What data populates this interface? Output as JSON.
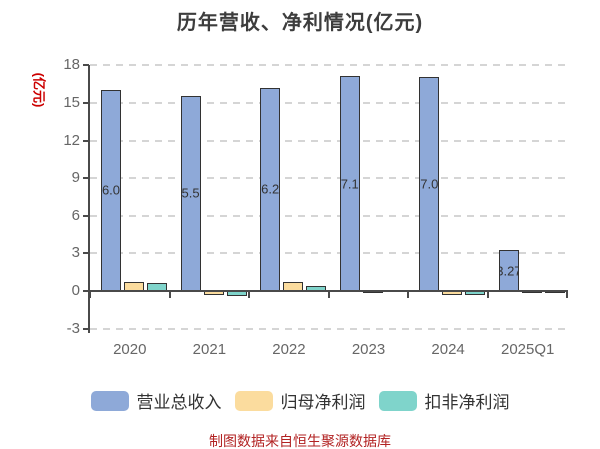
{
  "header": {
    "title": "历年营收、净利情况(亿元)"
  },
  "y_axis": {
    "unit_label": "(亿元)",
    "unit_label_color": "#cc0000"
  },
  "footer": {
    "source_note": "制图数据来自恒生聚源数据库",
    "color": "#b22222"
  },
  "legend": [
    {
      "label": "营业总收入",
      "color": "#8EA9D8"
    },
    {
      "label": "归母净利润",
      "color": "#FBDC9E"
    },
    {
      "label": "扣非净利润",
      "color": "#7FD4CB"
    }
  ],
  "colors": {
    "background": "#ffffff",
    "title_text": "#3d3d3d",
    "axis_line": "#4a4a4a",
    "gridline": "#d5d5d5",
    "tick_text": "#666666",
    "bar_border": "#323232",
    "bar_value_text": "#333333"
  },
  "chart_data": {
    "type": "bar",
    "title": "历年营收、净利情况(亿元)",
    "ylabel": "(亿元)",
    "categories": [
      "2020",
      "2021",
      "2022",
      "2023",
      "2024",
      "2025Q1"
    ],
    "series": [
      {
        "name": "营业总收入",
        "slug": "total-revenue",
        "color": "#8EA9D8",
        "values": [
          16.05,
          15.56,
          16.21,
          17.15,
          17.06,
          3.27
        ],
        "show_labels": true
      },
      {
        "name": "归母净利润",
        "slug": "net-profit-attributable",
        "color": "#FBDC9E",
        "values": [
          0.75,
          -0.33,
          0.68,
          0.03,
          -0.28,
          0.02
        ],
        "show_labels": false
      },
      {
        "name": "扣非净利润",
        "slug": "non-gaap-net-profit",
        "color": "#7FD4CB",
        "values": [
          0.62,
          -0.38,
          0.4,
          0.08,
          -0.34,
          0.02
        ],
        "show_labels": false
      }
    ],
    "ylim": [
      -3,
      18
    ],
    "yticks": [
      -3,
      0,
      3,
      6,
      9,
      12,
      15,
      18
    ],
    "grid": "horizontal dashed",
    "legend_position": "bottom",
    "bar_value_labels_clipped_to_bar_width": true
  }
}
